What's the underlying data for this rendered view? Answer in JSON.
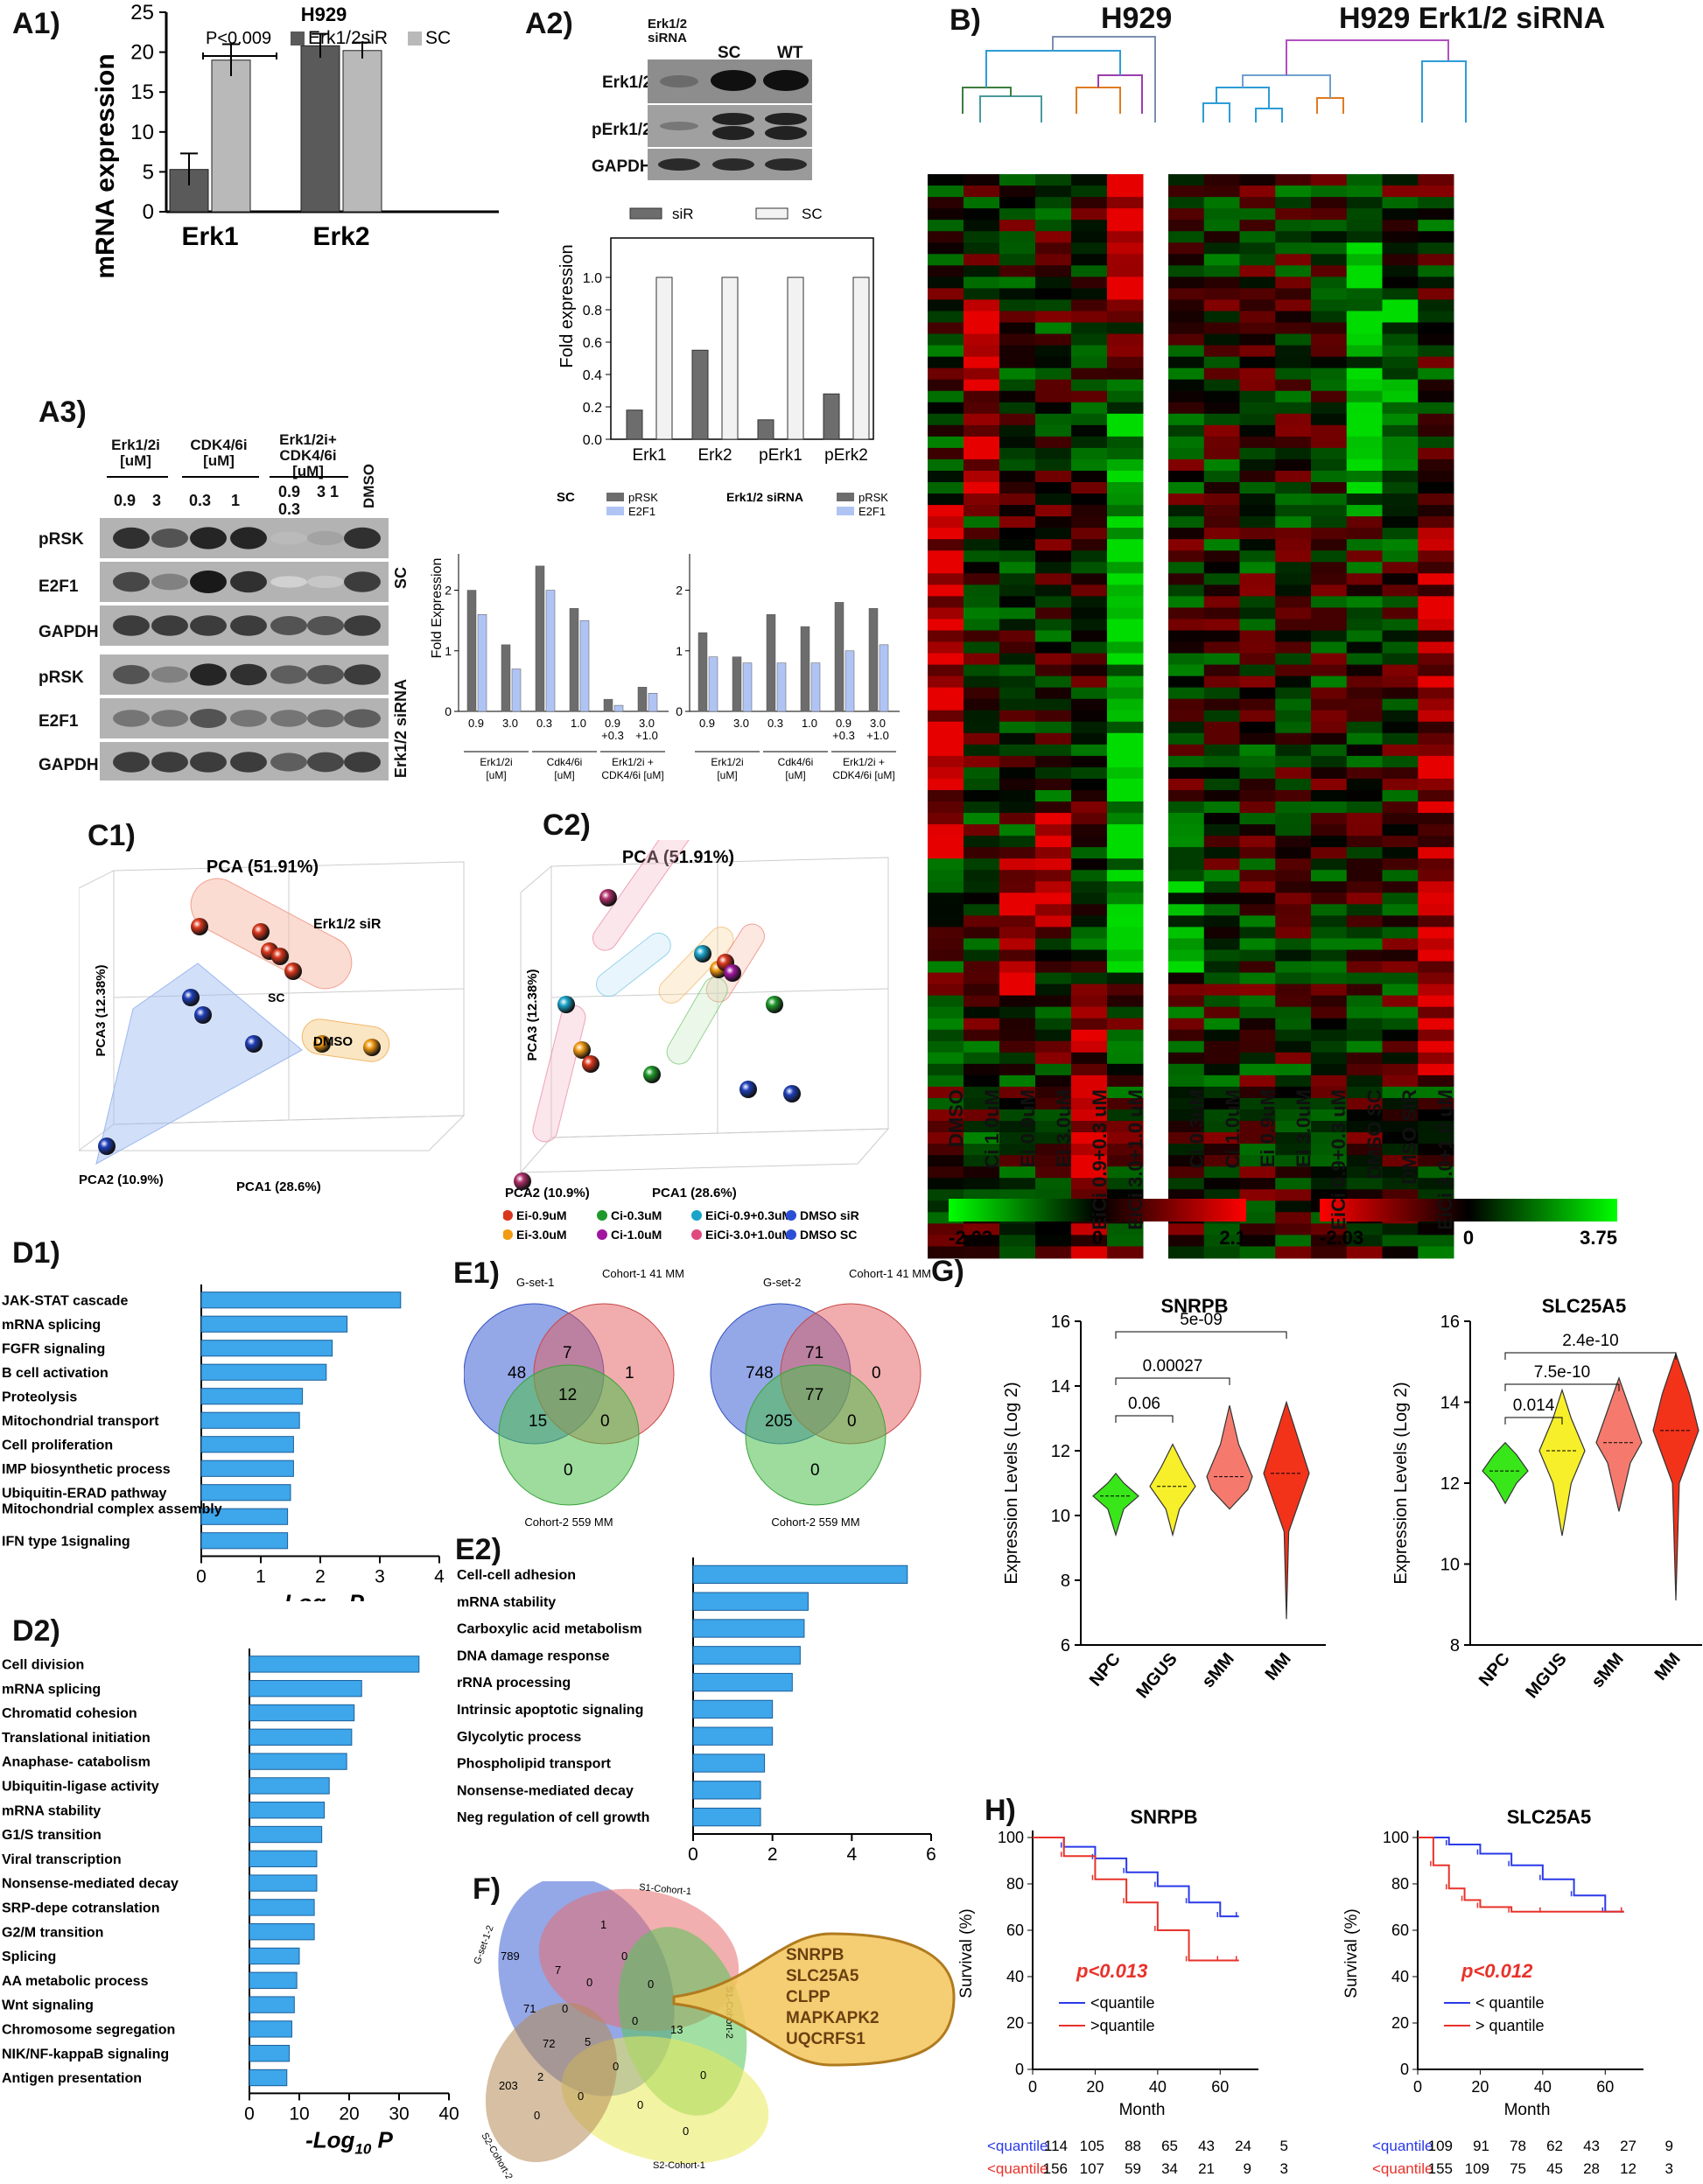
{
  "panels": {
    "A1": "A1)",
    "A2": "A2)",
    "A3": "A3)",
    "B": "B)",
    "C1": "C1)",
    "C2": "C2)",
    "D1": "D1)",
    "D2": "D2)",
    "E1": "E1)",
    "E2": "E2)",
    "F": "F)",
    "G": "G)",
    "H": "H)"
  },
  "a1": {
    "title": "H929",
    "ylabel": "mRNA expression",
    "pval": "P<0.009",
    "legend": [
      "Erk1/2siR",
      "SC"
    ],
    "colors": [
      "#5a5a5a",
      "#b9b9b9"
    ]
  },
  "a2": {
    "blot_cols": [
      "Erk1/2 siRNA",
      "SC",
      "WT"
    ],
    "blot_rows": [
      "Erk1/2",
      "pErk1/2",
      "GAPDH"
    ],
    "ylabel": "Fold expression",
    "legend": [
      "siR",
      "SC"
    ]
  },
  "a3": {
    "groups": [
      "Erk1/2i [uM]",
      "CDK4/6i [uM]",
      "Erk1/2i+ CDK4/6i [uM]"
    ],
    "doses": [
      "0.9",
      "3",
      "0.3",
      "1",
      "0.9 0.3",
      "3 1",
      "DMSO"
    ],
    "rows": [
      "pRSK",
      "E2F1",
      "GAPDH",
      "pRSK",
      "E2F1",
      "GAPDH"
    ],
    "side": [
      "SC",
      "Erk1/2 siRNA"
    ],
    "chart_titles": [
      "SC",
      "Erk1/2 siRNA"
    ],
    "ylabel": "Fold Expression",
    "legend": [
      "pRSK",
      "E2F1"
    ],
    "xticks": [
      "0.9",
      "3.0",
      "0.3",
      "1.0",
      "0.9 +0.3",
      "3.0 +1.0"
    ],
    "xgroups": [
      "Erk1/2i [uM]",
      "Cdk4/6i [uM]",
      "Erk1/2i + CDK4/6i [uM]"
    ]
  },
  "b": {
    "titles": [
      "H929",
      "H929 Erk1/2 siRNA"
    ],
    "cols_left": [
      "DMSO",
      "Ci 1.0uM",
      "Ei 0.9uM",
      "Ei 3.0uM",
      "EiCi 0.9+0.3 uM",
      "EiCi 3.0+1.0 uM"
    ],
    "cols_right": [
      "Ci 0.3uM",
      "Ci 1.0uM",
      "Ei 0.9uM",
      "Ei 3.0uM",
      "EiCi 0.9+0.3 uM",
      "DMSO SC",
      "DMSO SIR",
      "EiCi 3.0+1.0 uM"
    ],
    "scale_left": [
      "-2.03",
      "0",
      "2.1"
    ],
    "scale_right": [
      "-2.03",
      "0",
      "3.75"
    ]
  },
  "c1": {
    "title": "PCA (51.91%)",
    "pca1": "PCA1 (28.6%)",
    "pca2": "PCA2 (10.9%)",
    "pca3": "PCA3 (12.38%)",
    "groups": [
      "Erk1/2 siR",
      "SC",
      "DMSO"
    ]
  },
  "c2": {
    "title": "PCA (51.91%)",
    "pca1": "PCA1 (28.6%)",
    "pca2": "PCA2 (10.9%)",
    "pca3": "PCA3 (12.38%)",
    "legend": [
      "Ei-0.9uM",
      "Ci-0.3uM",
      "EiCi-0.9+0.3uM",
      "DMSO siR",
      "Ei-3.0uM",
      "Ci-1.0uM",
      "EiCi-3.0+1.0uM",
      "DMSO SC"
    ],
    "legend_colors": [
      "#d9371c",
      "#1f9a2a",
      "#1aa3c9",
      "#2a4fd6",
      "#f29a12",
      "#a0169e",
      "#e0497e",
      "#2a4fd6"
    ]
  },
  "e1": {
    "venn1": {
      "labels": [
        "G-set-1",
        "Cohort-1 41 MM",
        "Cohort-2 559 MM"
      ],
      "nums": [
        "48",
        "7",
        "1",
        "12",
        "15",
        "0",
        "0"
      ]
    },
    "venn2": {
      "labels": [
        "G-set-2",
        "Cohort-1 41 MM",
        "Cohort-2 559 MM"
      ],
      "nums": [
        "748",
        "71",
        "0",
        "77",
        "205",
        "0",
        "0"
      ]
    }
  },
  "f": {
    "sets": [
      "G-set-1-2",
      "S1-Cohort-1",
      "S1-Cohort-2",
      "S2-Cohort-1",
      "S2-Cohort-2"
    ],
    "nums": [
      "789",
      "1",
      "7",
      "0",
      "71",
      "72",
      "5",
      "203",
      "2",
      "13",
      "0",
      "0",
      "0",
      "0",
      "0",
      "0",
      "0",
      "0",
      "0",
      "0"
    ],
    "genes": [
      "SNRPB",
      "SLC25A5",
      "CLPP",
      "MAPKAPK2",
      "UQCRFS1"
    ]
  },
  "g": {
    "ylabel": "Expression Levels (Log 2)"
  },
  "h": {
    "ylabel": "Survival (%)",
    "xlabel": "Month",
    "pvals": [
      "p<0.013",
      "p<0.012"
    ],
    "legend_left": [
      "<quantile",
      ">quantile"
    ],
    "legend_right": [
      "< quantile",
      "> quantile"
    ],
    "risk_labels": [
      "<quantile",
      "<quantile"
    ],
    "risk_left": [
      [
        "114",
        "105",
        "88",
        "65",
        "43",
        "24",
        "5"
      ],
      [
        "156",
        "107",
        "59",
        "34",
        "21",
        "9",
        "3"
      ]
    ],
    "risk_right": [
      [
        "109",
        "91",
        "78",
        "62",
        "43",
        "27",
        "9"
      ],
      [
        "155",
        "109",
        "75",
        "45",
        "28",
        "12",
        "3"
      ]
    ]
  },
  "chart_data": [
    {
      "id": "A1",
      "type": "bar",
      "title": "H929",
      "ylabel": "mRNA expression",
      "categories": [
        "Erk1",
        "Erk2"
      ],
      "series": [
        {
          "name": "Erk1/2siR",
          "values": [
            5.3,
            20.8
          ],
          "err": [
            2.0,
            1.5
          ]
        },
        {
          "name": "SC",
          "values": [
            19.0,
            20.2
          ],
          "err": [
            2.0,
            1.0
          ]
        }
      ],
      "ylim": [
        0,
        25
      ],
      "yticks": [
        "0",
        "5",
        "10",
        "15",
        "20",
        "25"
      ]
    },
    {
      "id": "A2",
      "type": "bar",
      "ylabel": "Fold expression",
      "categories": [
        "Erk1",
        "Erk2",
        "pErk1",
        "pErk2"
      ],
      "series": [
        {
          "name": "siR",
          "values": [
            0.18,
            0.55,
            0.12,
            0.28
          ]
        },
        {
          "name": "SC",
          "values": [
            1.0,
            1.0,
            1.0,
            1.0
          ]
        }
      ],
      "ylim": [
        0,
        1.2
      ],
      "yticks": [
        "0.0",
        "0.2",
        "0.4",
        "0.6",
        "0.8",
        "1.0"
      ]
    },
    {
      "id": "A3-SC",
      "type": "bar",
      "title": "SC",
      "ylabel": "Fold Expression",
      "categories": [
        "0.9",
        "3.0",
        "0.3",
        "1.0",
        "0.9 +0.3",
        "3.0 +1.0"
      ],
      "series": [
        {
          "name": "pRSK",
          "values": [
            2.0,
            1.1,
            2.4,
            1.7,
            0.2,
            0.4
          ]
        },
        {
          "name": "E2F1",
          "values": [
            1.6,
            0.7,
            2.0,
            1.5,
            0.1,
            0.3
          ]
        }
      ],
      "ylim": [
        0,
        2.6
      ],
      "yticks": [
        "0",
        "1",
        "2"
      ]
    },
    {
      "id": "A3-siRNA",
      "type": "bar",
      "title": "Erk1/2 siRNA",
      "categories": [
        "0.9",
        "3.0",
        "0.3",
        "1.0",
        "0.9 +0.3",
        "3.0 +1.0"
      ],
      "series": [
        {
          "name": "pRSK",
          "values": [
            1.3,
            0.9,
            1.6,
            1.4,
            1.8,
            1.7
          ]
        },
        {
          "name": "E2F1",
          "values": [
            0.9,
            0.8,
            0.8,
            0.8,
            1.0,
            1.1
          ]
        }
      ],
      "ylim": [
        0,
        2.6
      ],
      "yticks": [
        "0",
        "1",
        "2"
      ]
    },
    {
      "id": "D1",
      "type": "bar",
      "orientation": "horizontal",
      "xlabel": "-Log10 P",
      "categories": [
        "JAK-STAT cascade",
        "mRNA splicing",
        "FGFR signaling",
        "B cell activation",
        "Proteolysis",
        "Mitochondrial transport",
        "Cell proliferation",
        "IMP biosynthetic process",
        "Ubiquitin-ERAD pathway",
        "Mitochondrial complex assembly",
        "IFN type 1signaling"
      ],
      "values": [
        3.35,
        2.45,
        2.2,
        2.1,
        1.7,
        1.65,
        1.55,
        1.55,
        1.5,
        1.45,
        1.45
      ],
      "xlim": [
        0,
        4
      ],
      "xticks": [
        "0",
        "1",
        "2",
        "3",
        "4"
      ]
    },
    {
      "id": "D2",
      "type": "bar",
      "orientation": "horizontal",
      "xlabel": "-Log10 P",
      "categories": [
        "Cell division",
        "mRNA splicing",
        "Chromatid cohesion",
        "Translational initiation",
        "Anaphase- catabolism",
        "Ubiquitin-ligase activity",
        "mRNA stability",
        "G1/S transition",
        "Viral transcription",
        "Nonsense-mediated decay",
        "SRP-depe cotranslation",
        "G2/M transition",
        "Splicing",
        "AA metabolic process",
        "Wnt signaling",
        "Chromosome segregation",
        "NIK/NF-kappaB signaling",
        "Antigen presentation"
      ],
      "values": [
        34,
        22.5,
        21,
        20.5,
        19.5,
        16,
        15,
        14.5,
        13.5,
        13.5,
        13,
        13,
        10,
        9.5,
        9,
        8.5,
        8,
        7.5
      ],
      "xlim": [
        0,
        40
      ],
      "xticks": [
        "0",
        "10",
        "20",
        "30",
        "40"
      ]
    },
    {
      "id": "E2",
      "type": "bar",
      "orientation": "horizontal",
      "xlabel": "-Log10 P",
      "categories": [
        "Cell-cell adhesion",
        "mRNA stability",
        "Carboxylic acid metabolism",
        "DNA damage response",
        "rRNA processing",
        "Intrinsic apoptotic signaling",
        "Glycolytic process",
        "Phospholipid transport",
        "Nonsense-mediated decay",
        "Neg regulation of cell growth"
      ],
      "values": [
        5.4,
        2.9,
        2.8,
        2.7,
        2.5,
        2.0,
        2.0,
        1.8,
        1.7,
        1.7
      ],
      "xlim": [
        0,
        6
      ],
      "xticks": [
        "0",
        "2",
        "4",
        "6"
      ]
    },
    {
      "id": "G-SNRPB",
      "type": "violin",
      "title": "SNRPB",
      "ylabel": "Expression Levels (Log 2)",
      "categories": [
        "NPC",
        "MGUS",
        "sMM",
        "MM"
      ],
      "medians": [
        10.6,
        10.9,
        11.2,
        11.3
      ],
      "ylim": [
        6,
        16
      ],
      "yticks": [
        "6",
        "8",
        "10",
        "12",
        "14",
        "16"
      ],
      "comparisons": [
        {
          "pair": [
            "NPC",
            "MGUS"
          ],
          "p": "0.06"
        },
        {
          "pair": [
            "NPC",
            "sMM"
          ],
          "p": "0.00027"
        },
        {
          "pair": [
            "NPC",
            "MM"
          ],
          "p": "5e-09"
        }
      ]
    },
    {
      "id": "G-SLC25A5",
      "type": "violin",
      "title": "SLC25A5",
      "ylabel": "Expression Levels (Log 2)",
      "categories": [
        "NPC",
        "MGUS",
        "sMM",
        "MM"
      ],
      "medians": [
        12.3,
        12.8,
        13.0,
        13.3
      ],
      "ylim": [
        8,
        16
      ],
      "yticks": [
        "8",
        "10",
        "12",
        "14",
        "16"
      ],
      "comparisons": [
        {
          "pair": [
            "NPC",
            "MGUS"
          ],
          "p": "0.014"
        },
        {
          "pair": [
            "NPC",
            "sMM"
          ],
          "p": "7.5e-10"
        },
        {
          "pair": [
            "NPC",
            "MM"
          ],
          "p": "2.4e-10"
        }
      ]
    },
    {
      "id": "H-SNRPB",
      "type": "line",
      "title": "SNRPB",
      "xlabel": "Month",
      "ylabel": "Survival (%)",
      "series": [
        {
          "name": "<quantile",
          "x": [
            0,
            10,
            20,
            30,
            40,
            50,
            60,
            66
          ],
          "y": [
            100,
            96,
            91,
            85,
            79,
            72,
            66,
            66
          ]
        },
        {
          "name": ">quantile",
          "x": [
            0,
            10,
            20,
            30,
            40,
            50,
            60,
            66
          ],
          "y": [
            100,
            92,
            82,
            72,
            60,
            47,
            47,
            47
          ]
        }
      ],
      "xlim": [
        0,
        70
      ],
      "ylim": [
        0,
        100
      ],
      "xticks": [
        "0",
        "20",
        "40",
        "60"
      ],
      "yticks": [
        "0",
        "20",
        "40",
        "60",
        "80",
        "100"
      ]
    },
    {
      "id": "H-SLC25A5",
      "type": "line",
      "title": "SLC25A5",
      "xlabel": "Month",
      "ylabel": "Survival (%)",
      "series": [
        {
          "name": "< quantile",
          "x": [
            0,
            10,
            20,
            30,
            40,
            50,
            60,
            66
          ],
          "y": [
            100,
            97,
            93,
            88,
            82,
            75,
            68,
            68
          ]
        },
        {
          "name": "> quantile",
          "x": [
            0,
            5,
            10,
            15,
            20,
            30,
            40,
            66
          ],
          "y": [
            100,
            88,
            78,
            73,
            70,
            68,
            68,
            68
          ]
        }
      ],
      "xlim": [
        0,
        70
      ],
      "ylim": [
        0,
        100
      ],
      "xticks": [
        "0",
        "20",
        "40",
        "60"
      ],
      "yticks": [
        "0",
        "20",
        "40",
        "60",
        "80",
        "100"
      ]
    }
  ]
}
